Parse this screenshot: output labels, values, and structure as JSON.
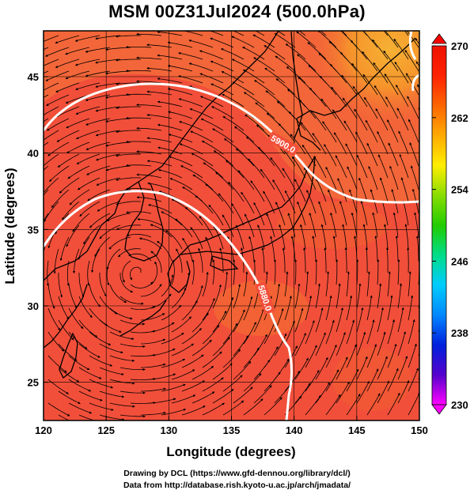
{
  "title": "MSM 00Z31Jul2024 (500.0hPa)",
  "x_axis": {
    "label": "Longitude (degrees)",
    "ticks": [
      "120",
      "125",
      "130",
      "135",
      "140",
      "145",
      "150"
    ]
  },
  "y_axis": {
    "label": "Latitude  (degrees)",
    "ticks": [
      "45",
      "40",
      "35",
      "30",
      "25"
    ]
  },
  "colorbar": {
    "ticks": [
      "270",
      "262",
      "254",
      "246",
      "238",
      "230"
    ],
    "colors": [
      "#ff00ff",
      "#5500cc",
      "#0020dd",
      "#0088ff",
      "#00ccff",
      "#00dd88",
      "#22cc00",
      "#88dd00",
      "#ffee00",
      "#ffaa00",
      "#ff6600",
      "#ff2200",
      "#ee1100"
    ]
  },
  "contours": [
    {
      "label": "5900.0",
      "color": "#ffffff"
    },
    {
      "label": "5880.0",
      "color": "#ffffff"
    }
  ],
  "colors": {
    "field_main": "#f24f3a",
    "field_warm": "#f4782c",
    "field_hot": "#f5a531",
    "coast": "#000000",
    "contour": "#ffffff"
  },
  "credit": {
    "line1": "Drawing by DCL (https://www.gfd-dennou.org/library/dcl/)",
    "line2": "Data from http://database.rish.kyoto-u.ac.jp/arch/jmadata/"
  }
}
